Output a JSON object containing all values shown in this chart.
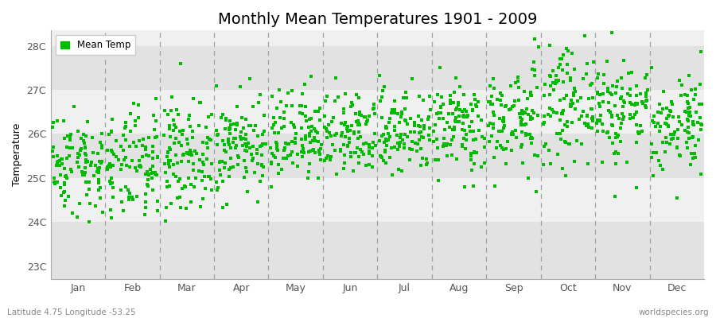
{
  "title": "Monthly Mean Temperatures 1901 - 2009",
  "ylabel": "Temperature",
  "ytick_labels": [
    "23C",
    "24C",
    "25C",
    "26C",
    "27C",
    "28C"
  ],
  "ytick_values": [
    23,
    24,
    25,
    26,
    27,
    28
  ],
  "ylim": [
    22.7,
    28.35
  ],
  "xlim": [
    0,
    12
  ],
  "months": [
    "Jan",
    "Feb",
    "Mar",
    "Apr",
    "May",
    "Jun",
    "Jul",
    "Aug",
    "Sep",
    "Oct",
    "Nov",
    "Dec"
  ],
  "dot_color": "#00BB00",
  "bg_light": "#F0F0F0",
  "bg_dark": "#E2E2E2",
  "fig_bg_color": "#FFFFFF",
  "dashed_line_color": "#999999",
  "title_fontsize": 14,
  "label_fontsize": 9,
  "tick_fontsize": 9,
  "footer_left": "Latitude 4.75 Longitude -53.25",
  "footer_right": "worldspecies.org",
  "num_years": 109,
  "seed": 42,
  "monthly_mean": [
    25.3,
    25.2,
    25.5,
    25.7,
    25.8,
    25.9,
    26.0,
    26.1,
    26.3,
    26.6,
    26.5,
    26.2
  ],
  "monthly_std": [
    0.55,
    0.6,
    0.6,
    0.55,
    0.5,
    0.45,
    0.45,
    0.5,
    0.55,
    0.6,
    0.6,
    0.55
  ],
  "trend_start": -0.2,
  "trend_end": 0.3
}
